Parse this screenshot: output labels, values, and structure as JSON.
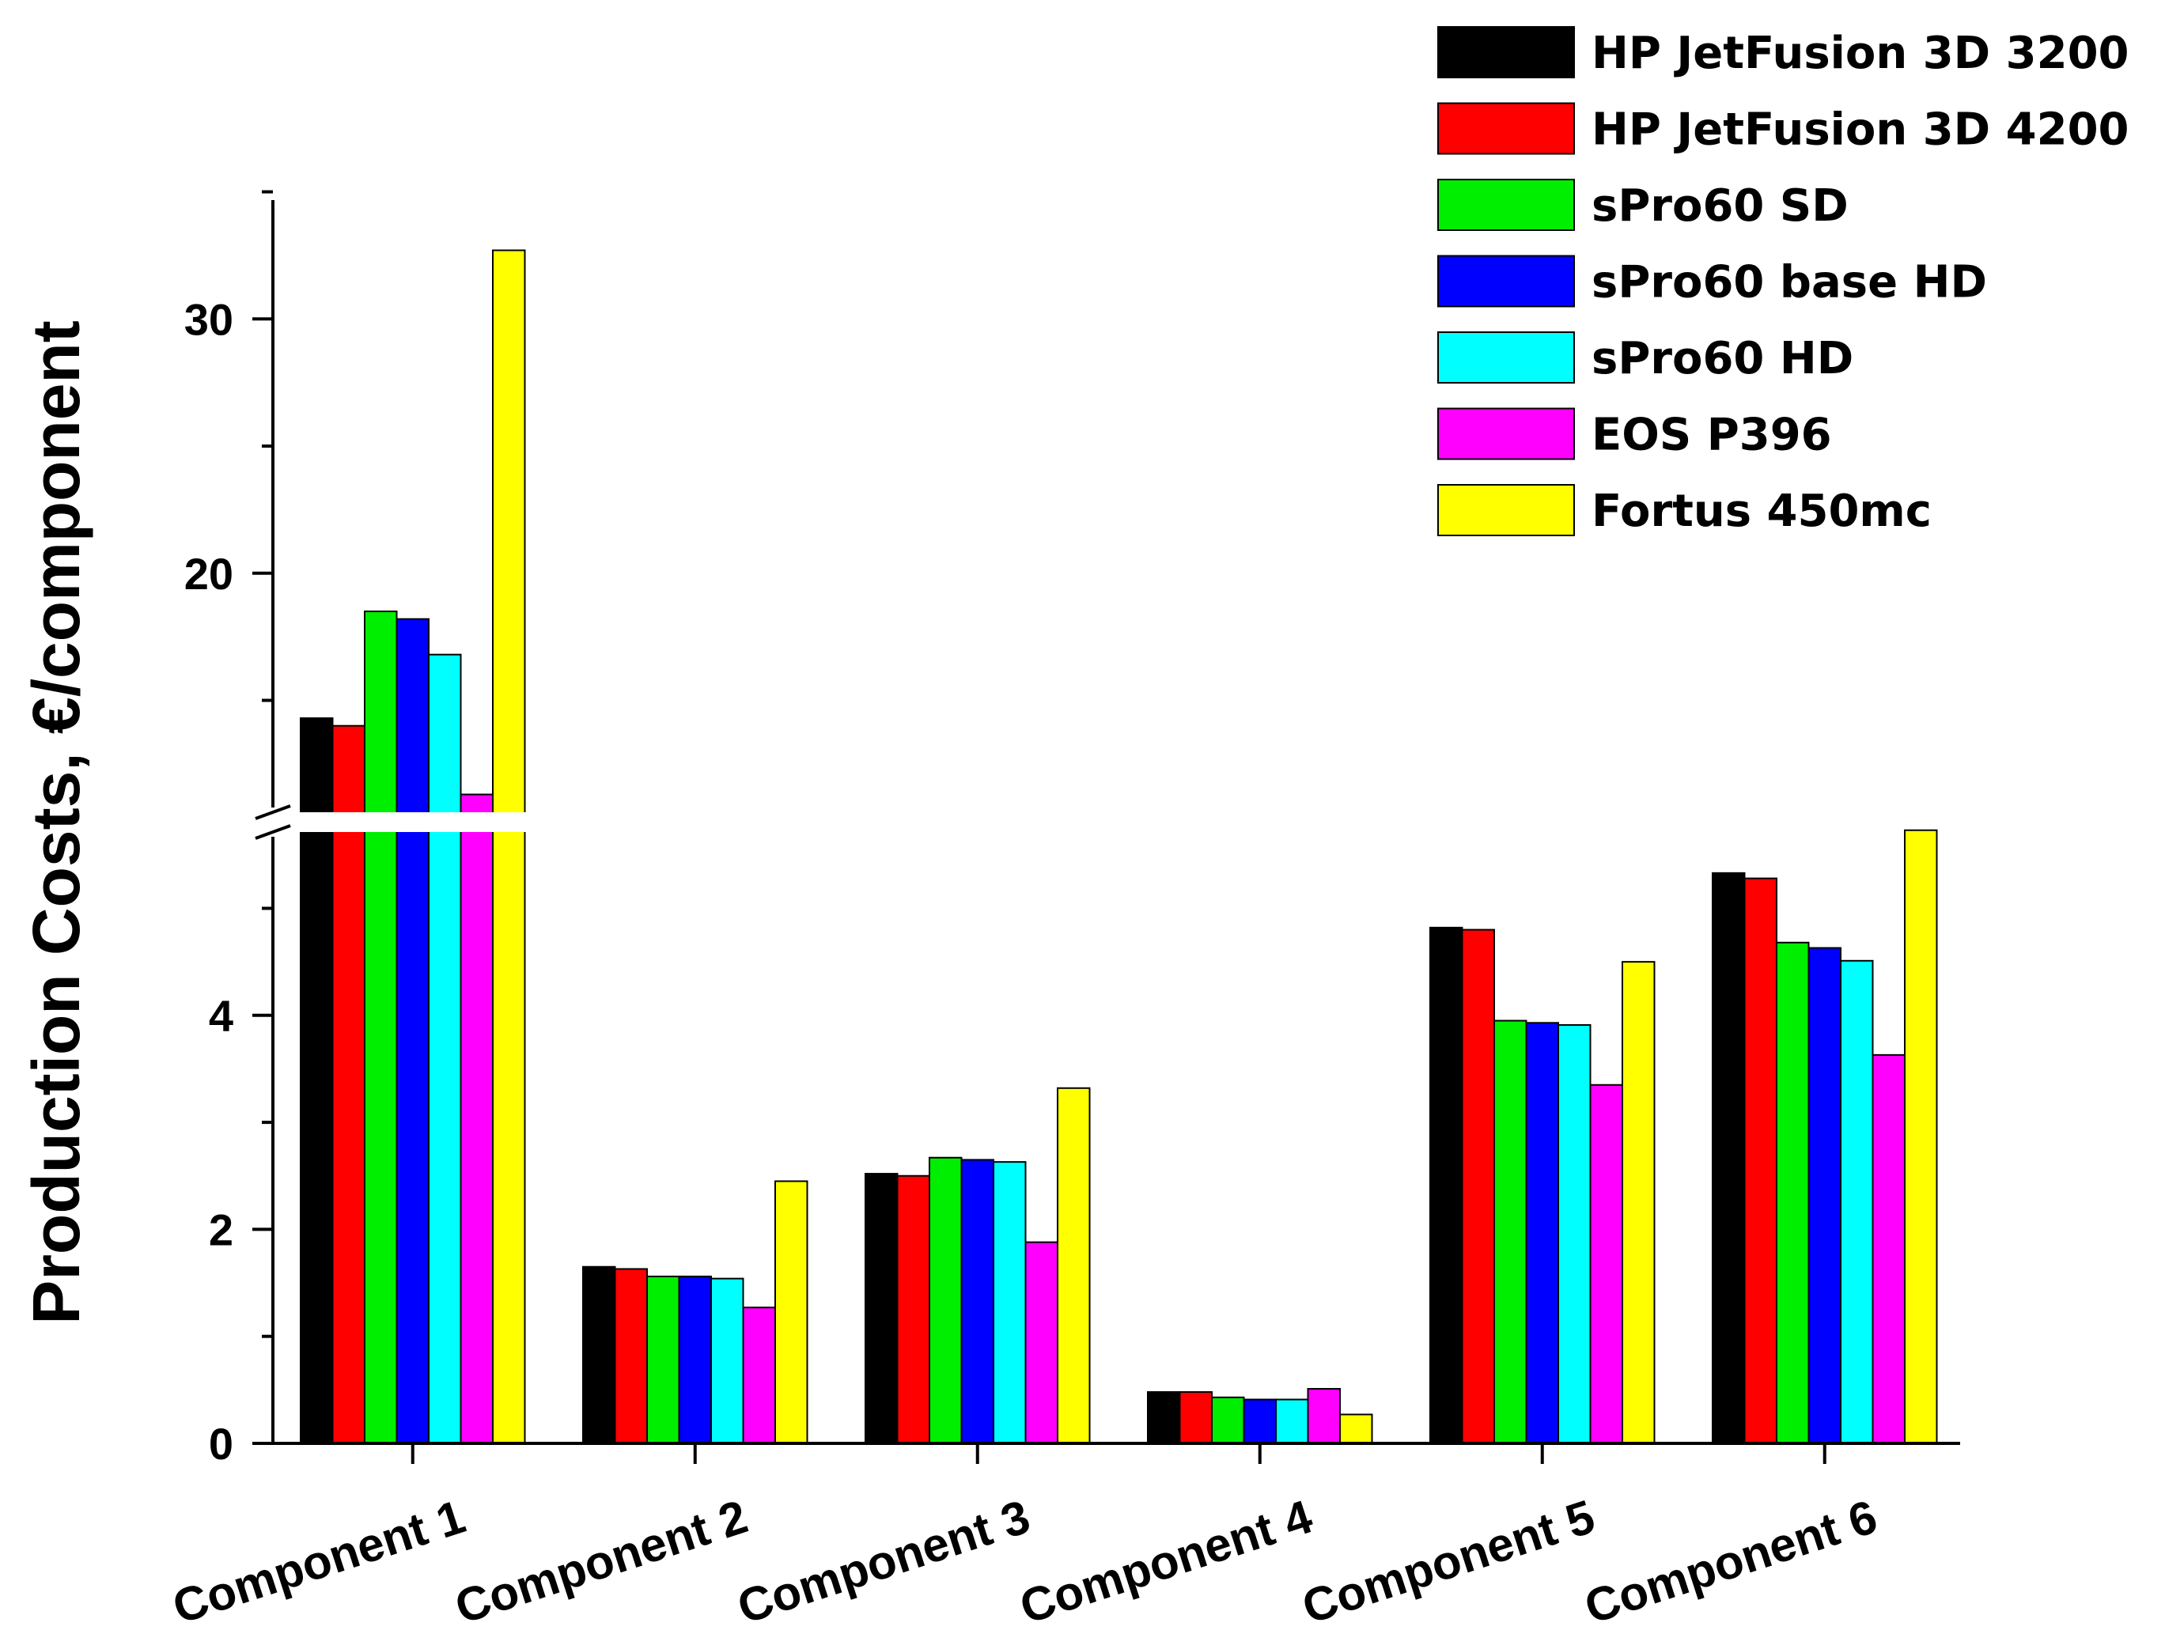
{
  "chart_data": {
    "type": "bar",
    "title": "",
    "xlabel": "",
    "ylabel": "Production Costs, €/component",
    "categories": [
      "Component 1",
      "Component 2",
      "Component 3",
      "Component 4",
      "Component 5",
      "Component 6"
    ],
    "series": [
      {
        "name": "HP JetFusion 3D 3200",
        "color": "#000000",
        "values": [
          14.3,
          1.65,
          2.52,
          0.48,
          4.82,
          5.33
        ]
      },
      {
        "name": "HP JetFusion 3D 4200",
        "color": "#ff0000",
        "values": [
          14.0,
          1.63,
          2.5,
          0.48,
          4.8,
          5.28
        ]
      },
      {
        "name": "sPro60 SD",
        "color": "#00ee00",
        "values": [
          18.5,
          1.56,
          2.67,
          0.43,
          3.95,
          4.68
        ]
      },
      {
        "name": "sPro60 base HD",
        "color": "#0000ff",
        "values": [
          18.2,
          1.56,
          2.65,
          0.41,
          3.93,
          4.63
        ]
      },
      {
        "name": "sPro60 HD",
        "color": "#00ffff",
        "values": [
          16.8,
          1.54,
          2.63,
          0.41,
          3.91,
          4.51
        ]
      },
      {
        "name": "EOS P396",
        "color": "#ff00ff",
        "values": [
          11.3,
          1.27,
          1.88,
          0.51,
          3.35,
          3.63
        ]
      },
      {
        "name": "Fortus 450mc",
        "color": "#ffff00",
        "values": [
          32.7,
          2.45,
          3.32,
          0.27,
          4.5,
          5.73
        ]
      }
    ],
    "axis_break": {
      "lower_range": [
        0,
        5.8
      ],
      "upper_range": [
        10.6,
        35
      ]
    },
    "yticks_lower": [
      0,
      2,
      4
    ],
    "yticks_upper": [
      20,
      30
    ],
    "ytick_labels_lower": [
      "0",
      "2",
      "4"
    ],
    "ytick_labels_upper": [
      "20",
      "30"
    ],
    "legend_position": "top-right",
    "grid": false
  }
}
